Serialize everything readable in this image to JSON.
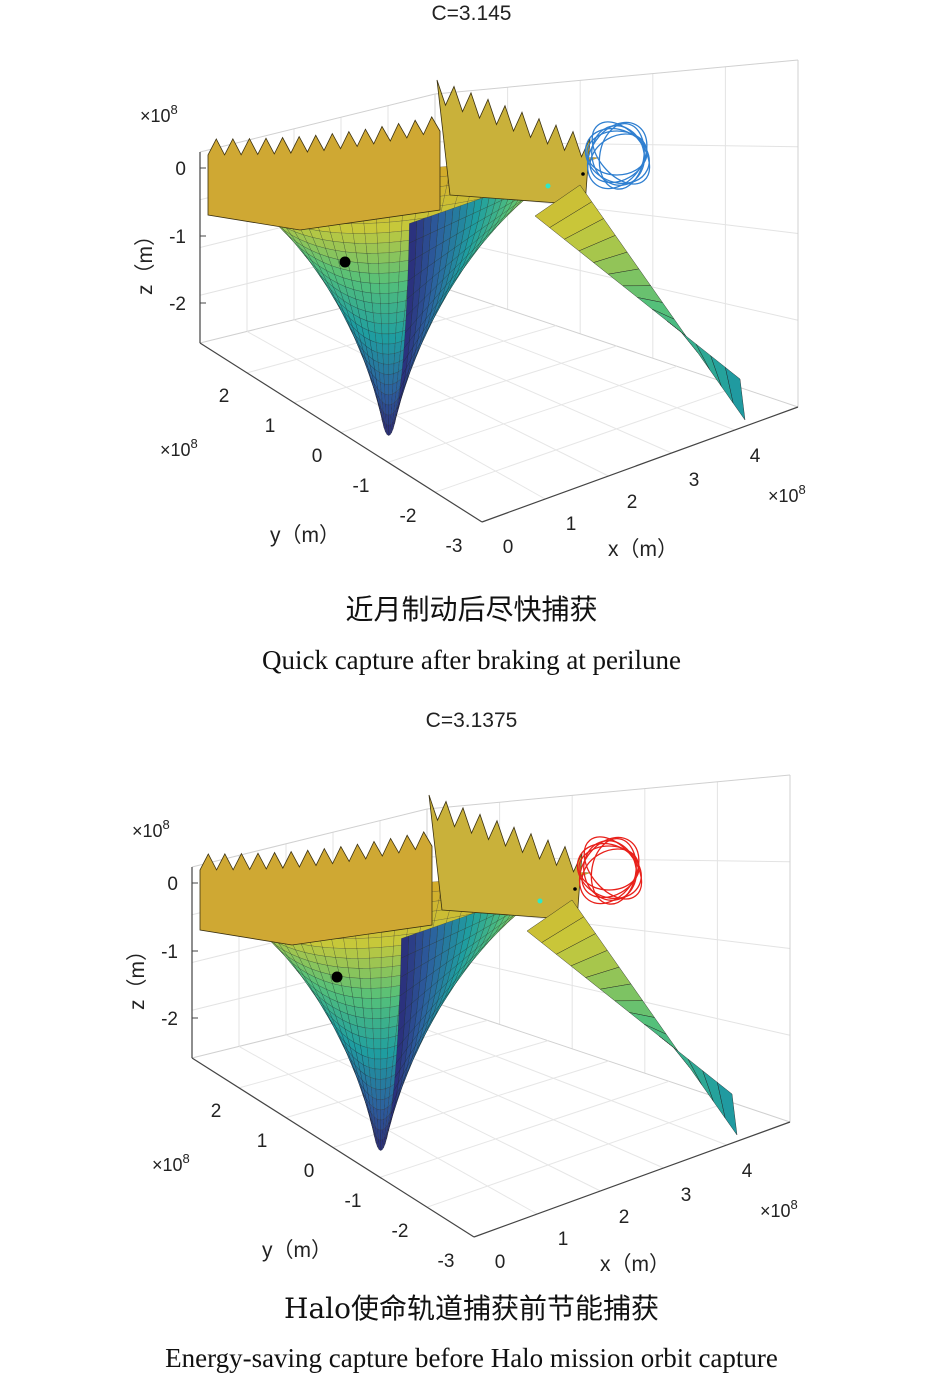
{
  "chart_data": [
    {
      "type": "surface3d",
      "title": "C=3.145",
      "xlabel": "x（m）",
      "ylabel": "y（m）",
      "zlabel": "z（m）",
      "x_ticks": [
        "0",
        "1",
        "2",
        "3",
        "4"
      ],
      "y_ticks": [
        "2",
        "1",
        "0",
        "-1",
        "-2",
        "-3"
      ],
      "z_ticks": [
        "0",
        "-1",
        "-2"
      ],
      "x_exponent": "×10",
      "y_exponent": "×10",
      "z_exponent": "×10",
      "exponent_power": "8",
      "xlim": [
        0,
        4.5
      ],
      "ylim": [
        -3,
        3
      ],
      "zlim": [
        -2.5,
        0.5
      ],
      "orbit_color": "#2f7fd0",
      "colormap": [
        "#2b1a6e",
        "#2c5f9e",
        "#1f9ea0",
        "#54c07a",
        "#c8c83a",
        "#d4a92a"
      ],
      "grid": true,
      "caption_cn": "近月制动后尽快捕获",
      "caption_en": "Quick capture after braking at perilune"
    },
    {
      "type": "surface3d",
      "title": "C=3.1375",
      "xlabel": "x（m）",
      "ylabel": "y（m）",
      "zlabel": "z（m）",
      "x_ticks": [
        "0",
        "1",
        "2",
        "3",
        "4"
      ],
      "y_ticks": [
        "2",
        "1",
        "0",
        "-1",
        "-2",
        "-3"
      ],
      "z_ticks": [
        "0",
        "-1",
        "-2"
      ],
      "x_exponent": "×10",
      "y_exponent": "×10",
      "z_exponent": "×10",
      "exponent_power": "8",
      "xlim": [
        0,
        4.5
      ],
      "ylim": [
        -3,
        3
      ],
      "zlim": [
        -2.5,
        0.5
      ],
      "orbit_color": "#e8201a",
      "colormap": [
        "#2b1a6e",
        "#2c5f9e",
        "#1f9ea0",
        "#54c07a",
        "#c8c83a",
        "#d4a92a"
      ],
      "grid": true,
      "caption_cn": "Halo使命轨道捕获前节能捕获",
      "caption_en": "Energy-saving capture before Halo mission orbit capture"
    }
  ]
}
